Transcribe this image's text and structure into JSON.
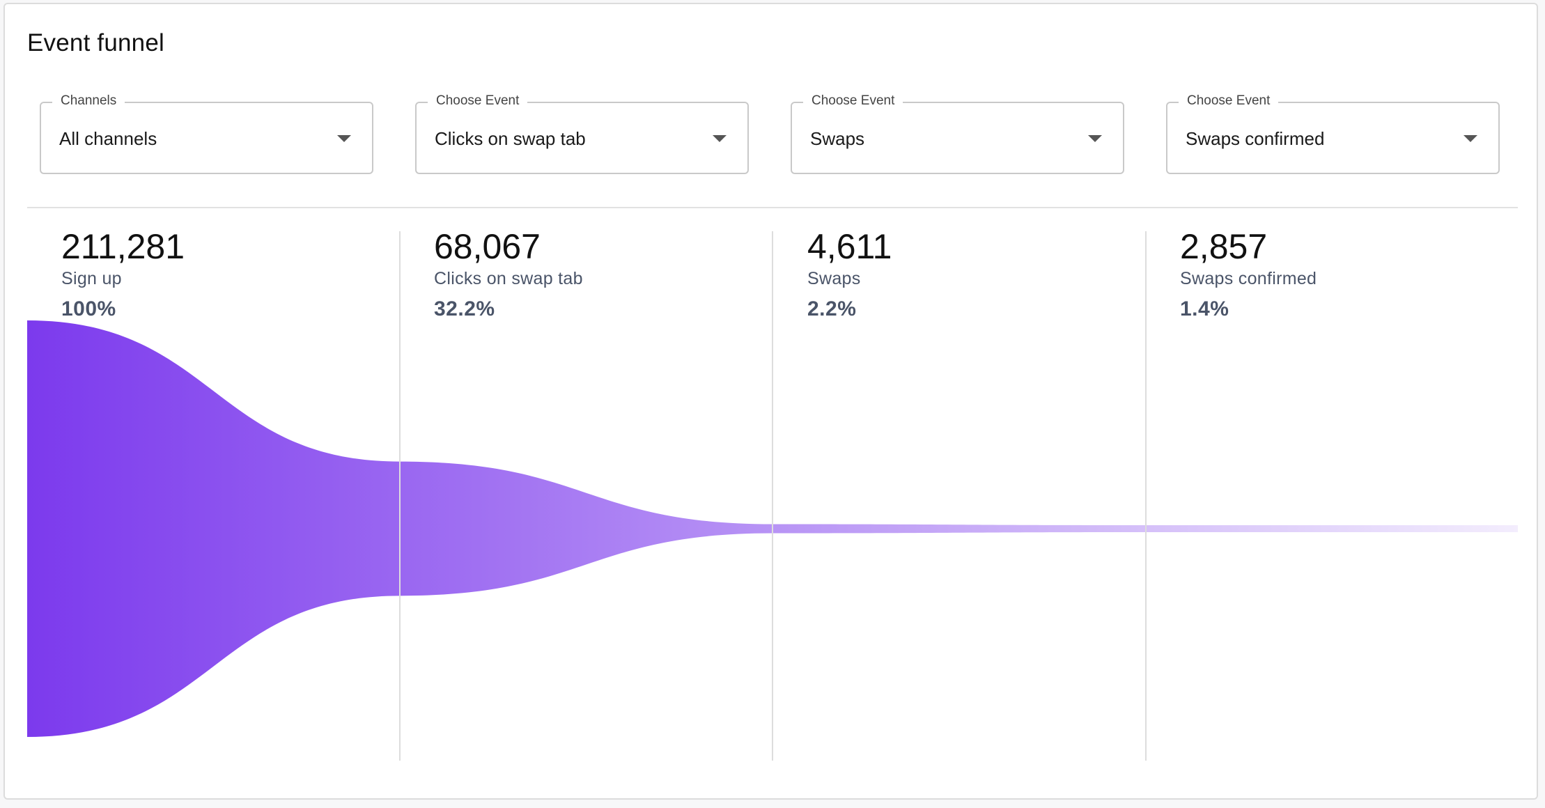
{
  "title": "Event funnel",
  "filters": [
    {
      "legend": "Channels",
      "value": "All channels"
    },
    {
      "legend": "Choose Event",
      "value": "Clicks on swap tab"
    },
    {
      "legend": "Choose Event",
      "value": "Swaps"
    },
    {
      "legend": "Choose Event",
      "value": "Swaps confirmed"
    }
  ],
  "chart_data": {
    "type": "funnel",
    "title": "Event funnel",
    "stages": [
      {
        "label": "Sign up",
        "value": 211281,
        "value_text": "211,281",
        "percent": 100,
        "percent_text": "100%"
      },
      {
        "label": "Clicks on swap tab",
        "value": 68067,
        "value_text": "68,067",
        "percent": 32.2,
        "percent_text": "32.2%"
      },
      {
        "label": "Swaps",
        "value": 4611,
        "value_text": "4,611",
        "percent": 2.2,
        "percent_text": "2.2%"
      },
      {
        "label": "Swaps confirmed",
        "value": 2857,
        "value_text": "2,857",
        "percent": 1.4,
        "percent_text": "1.4%"
      }
    ],
    "colors": {
      "start": "#7c3aed",
      "end": "#f3edfd"
    }
  }
}
